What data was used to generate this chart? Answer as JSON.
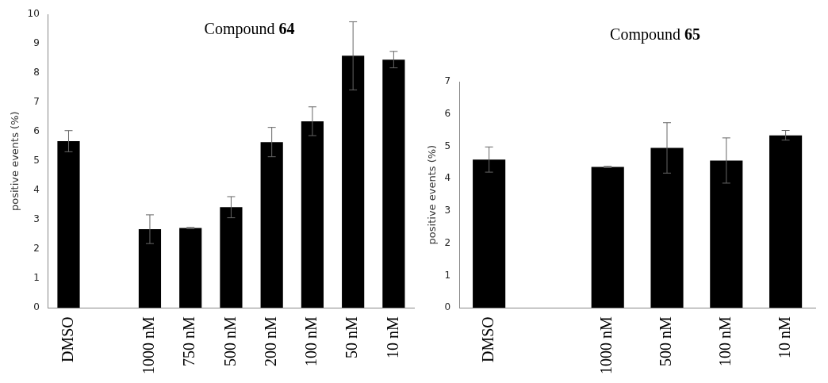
{
  "chart_data": [
    {
      "type": "bar",
      "title": "Compound 64",
      "ylabel": "positive events (%)",
      "categories": [
        "DMSO",
        null,
        "1000 nM",
        "750 nM",
        "500 nM",
        "200 nM",
        "100 nM",
        "50 nM",
        "10 nM"
      ],
      "values": [
        5.68,
        null,
        2.68,
        2.72,
        3.43,
        5.65,
        6.36,
        8.59,
        8.46
      ],
      "errors": [
        0.36,
        null,
        0.49,
        0.02,
        0.36,
        0.5,
        0.49,
        1.16,
        0.28
      ],
      "color": "#000000",
      "ylim": [
        0,
        10
      ],
      "yticks": [
        0,
        1,
        2,
        3,
        4,
        5,
        6,
        7,
        8,
        9,
        10
      ],
      "grid": false,
      "legend": false
    },
    {
      "type": "bar",
      "title": "Compound 65",
      "ylabel": "positive events (%)",
      "categories": [
        "DMSO",
        null,
        "1000 nM",
        "500 nM",
        "100 nM",
        "10 nM"
      ],
      "values": [
        4.59,
        null,
        4.36,
        4.95,
        4.56,
        5.34
      ],
      "errors": [
        0.39,
        null,
        0.02,
        0.78,
        0.7,
        0.15
      ],
      "color": "#000000",
      "ylim": [
        0,
        7
      ],
      "yticks": [
        0,
        1,
        2,
        3,
        4,
        5,
        6,
        7
      ],
      "grid": false,
      "legend": false
    }
  ]
}
